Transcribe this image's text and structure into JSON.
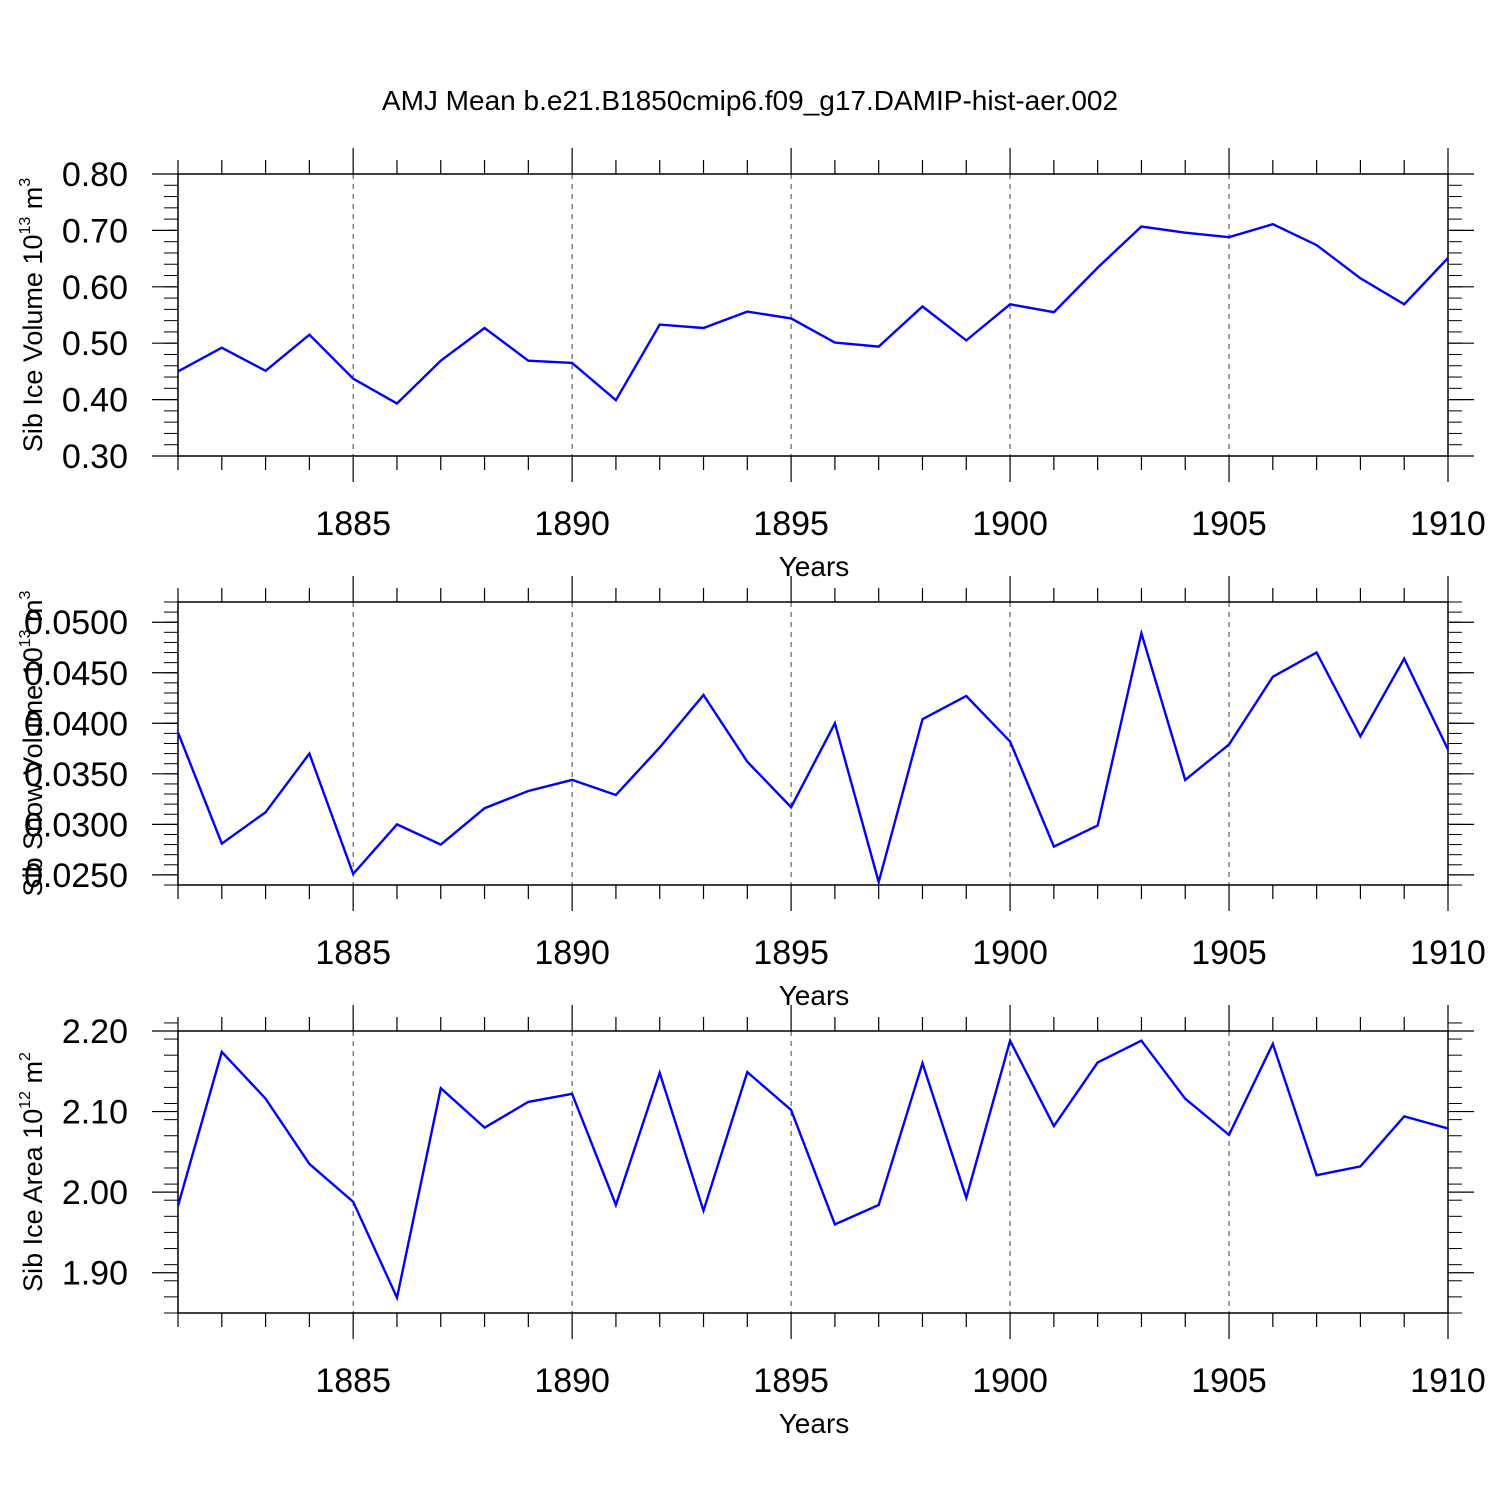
{
  "figure": {
    "title": "AMJ Mean b.e21.B1850cmip6.f09_g17.DAMIP-hist-aer.002"
  },
  "colors": {
    "line": "#0000ff",
    "axis": "#000000",
    "grid": "#444444"
  },
  "chart_data": [
    {
      "type": "line",
      "title": "AMJ Mean b.e21.B1850cmip6.f09_g17.DAMIP-hist-aer.002",
      "xlabel": "Years",
      "ylabel": {
        "pre": "Sib Ice Volume 10",
        "sup": "13",
        "mid": " m",
        "sup2": "3"
      },
      "xlim": [
        1881,
        1910
      ],
      "ylim": [
        0.3,
        0.8
      ],
      "x_ticks": [
        "1885",
        "1890",
        "1895",
        "1900",
        "1905",
        "1910"
      ],
      "y_ticks": [
        "0.30",
        "0.40",
        "0.50",
        "0.60",
        "0.70",
        "0.80"
      ],
      "y_minor_step": 0.02,
      "grid": "vertical dashed at major x ticks",
      "x": [
        1881,
        1882,
        1883,
        1884,
        1885,
        1886,
        1887,
        1888,
        1889,
        1890,
        1891,
        1892,
        1893,
        1894,
        1895,
        1896,
        1897,
        1898,
        1899,
        1900,
        1901,
        1902,
        1903,
        1904,
        1905,
        1906,
        1907,
        1908,
        1909,
        1910
      ],
      "values": [
        0.45,
        0.492,
        0.451,
        0.515,
        0.437,
        0.393,
        0.469,
        0.527,
        0.469,
        0.465,
        0.399,
        0.533,
        0.527,
        0.556,
        0.544,
        0.501,
        0.494,
        0.565,
        0.505,
        0.569,
        0.555,
        0.634,
        0.707,
        0.696,
        0.688,
        0.711,
        0.674,
        0.615,
        0.569,
        0.651
      ]
    },
    {
      "type": "line",
      "xlabel": "Years",
      "ylabel": {
        "pre": "Sib Snow Volume 10",
        "sup": "13",
        "mid": " m",
        "sup2": "3"
      },
      "xlim": [
        1881,
        1910
      ],
      "ylim": [
        0.024,
        0.052
      ],
      "x_ticks": [
        "1885",
        "1890",
        "1895",
        "1900",
        "1905",
        "1910"
      ],
      "y_ticks": [
        "0.0250",
        "0.0300",
        "0.0350",
        "0.0400",
        "0.0450",
        "0.0500"
      ],
      "y_minor_step": 0.001,
      "grid": "vertical dashed at major x ticks",
      "x": [
        1881,
        1882,
        1883,
        1884,
        1885,
        1886,
        1887,
        1888,
        1889,
        1890,
        1891,
        1892,
        1893,
        1894,
        1895,
        1896,
        1897,
        1898,
        1899,
        1900,
        1901,
        1902,
        1903,
        1904,
        1905,
        1906,
        1907,
        1908,
        1909,
        1910
      ],
      "values": [
        0.0391,
        0.0281,
        0.0312,
        0.037,
        0.0251,
        0.03,
        0.028,
        0.0316,
        0.0333,
        0.0344,
        0.0329,
        0.0376,
        0.0428,
        0.0362,
        0.0317,
        0.04,
        0.0243,
        0.0404,
        0.0427,
        0.0382,
        0.0278,
        0.0299,
        0.0489,
        0.0344,
        0.0379,
        0.0446,
        0.047,
        0.0387,
        0.0464,
        0.0374
      ]
    },
    {
      "type": "line",
      "xlabel": "Years",
      "ylabel": {
        "pre": "Sib Ice Area 10",
        "sup": "12",
        "mid": " m",
        "sup2": "2"
      },
      "xlim": [
        1881,
        1910
      ],
      "ylim": [
        1.85,
        2.2
      ],
      "x_ticks": [
        "1885",
        "1890",
        "1895",
        "1900",
        "1905",
        "1910"
      ],
      "y_ticks": [
        "1.90",
        "2.00",
        "2.10",
        "2.20"
      ],
      "y_minor_step": 0.02,
      "grid": "vertical dashed at major x ticks",
      "x": [
        1881,
        1882,
        1883,
        1884,
        1885,
        1886,
        1887,
        1888,
        1889,
        1890,
        1891,
        1892,
        1893,
        1894,
        1895,
        1896,
        1897,
        1898,
        1899,
        1900,
        1901,
        1902,
        1903,
        1904,
        1905,
        1906,
        1907,
        1908,
        1909,
        1910
      ],
      "values": [
        1.983,
        2.174,
        2.116,
        2.035,
        1.988,
        1.869,
        2.129,
        2.08,
        2.112,
        2.122,
        1.984,
        2.148,
        1.977,
        2.149,
        2.102,
        1.96,
        1.984,
        2.16,
        1.993,
        2.188,
        2.082,
        2.161,
        2.188,
        2.116,
        2.071,
        2.184,
        2.021,
        2.032,
        2.094,
        2.079
      ]
    }
  ]
}
